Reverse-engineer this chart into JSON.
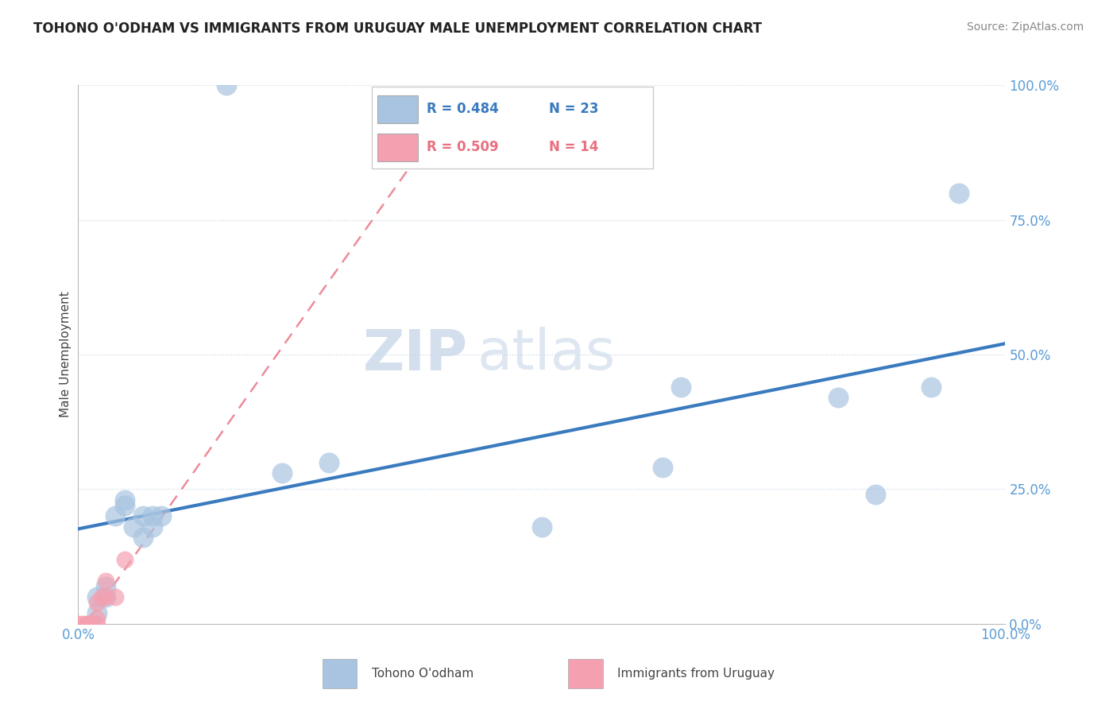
{
  "title": "TOHONO O'ODHAM VS IMMIGRANTS FROM URUGUAY MALE UNEMPLOYMENT CORRELATION CHART",
  "source_text": "Source: ZipAtlas.com",
  "ylabel": "Male Unemployment",
  "xlim": [
    0,
    1.0
  ],
  "ylim": [
    0,
    1.0
  ],
  "ytick_labels": [
    "0.0%",
    "25.0%",
    "50.0%",
    "75.0%",
    "100.0%"
  ],
  "ytick_values": [
    0,
    0.25,
    0.5,
    0.75,
    1.0
  ],
  "legend_r1": "R = 0.484",
  "legend_n1": "N = 23",
  "legend_r2": "R = 0.509",
  "legend_n2": "N = 14",
  "series1_label": "Tohono O'odham",
  "series2_label": "Immigrants from Uruguay",
  "series1_color": "#a8c4e0",
  "series2_color": "#f4a0b0",
  "regression1_color": "#3a7abf",
  "regression2_color": "#e87080",
  "watermark_text": "ZIPatlas",
  "tohono_x": [
    0.02,
    0.02,
    0.03,
    0.03,
    0.04,
    0.05,
    0.05,
    0.06,
    0.07,
    0.07,
    0.08,
    0.08,
    0.09,
    0.22,
    0.27,
    0.5,
    0.63,
    0.65,
    0.82,
    0.86,
    0.92,
    0.95,
    0.16
  ],
  "tohono_y": [
    0.02,
    0.05,
    0.05,
    0.07,
    0.2,
    0.22,
    0.23,
    0.18,
    0.16,
    0.2,
    0.2,
    0.18,
    0.2,
    0.28,
    0.3,
    0.18,
    0.29,
    0.44,
    0.42,
    0.24,
    0.44,
    0.8,
    1.0
  ],
  "uruguay_x": [
    0.0,
    0.005,
    0.01,
    0.01,
    0.01,
    0.015,
    0.02,
    0.02,
    0.02,
    0.025,
    0.03,
    0.03,
    0.04,
    0.05
  ],
  "uruguay_y": [
    0.0,
    0.0,
    0.0,
    0.0,
    0.0,
    0.0,
    0.0,
    0.01,
    0.04,
    0.05,
    0.08,
    0.05,
    0.05,
    0.12
  ]
}
